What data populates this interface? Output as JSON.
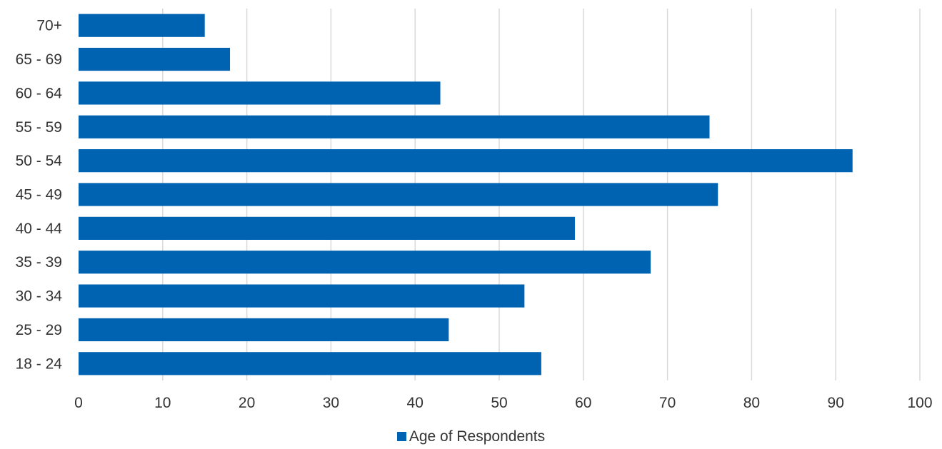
{
  "chart_data": {
    "type": "bar",
    "orientation": "horizontal",
    "categories": [
      "18 - 24",
      "25 - 29",
      "30 - 34",
      "35 - 39",
      "40 - 44",
      "45 - 49",
      "50 - 54",
      "55 - 59",
      "60 - 64",
      "65 - 69",
      "70+"
    ],
    "series": [
      {
        "name": "Age of Respondents",
        "color": "#0063B2",
        "values": [
          55,
          44,
          53,
          68,
          59,
          76,
          92,
          75,
          43,
          18,
          15
        ]
      }
    ],
    "xlim": [
      0,
      100
    ],
    "xticks": [
      0,
      10,
      20,
      30,
      40,
      50,
      60,
      70,
      80,
      90,
      100
    ],
    "grid": "vertical",
    "legend_position": "bottom-center",
    "title": "",
    "xlabel": "",
    "ylabel": ""
  }
}
